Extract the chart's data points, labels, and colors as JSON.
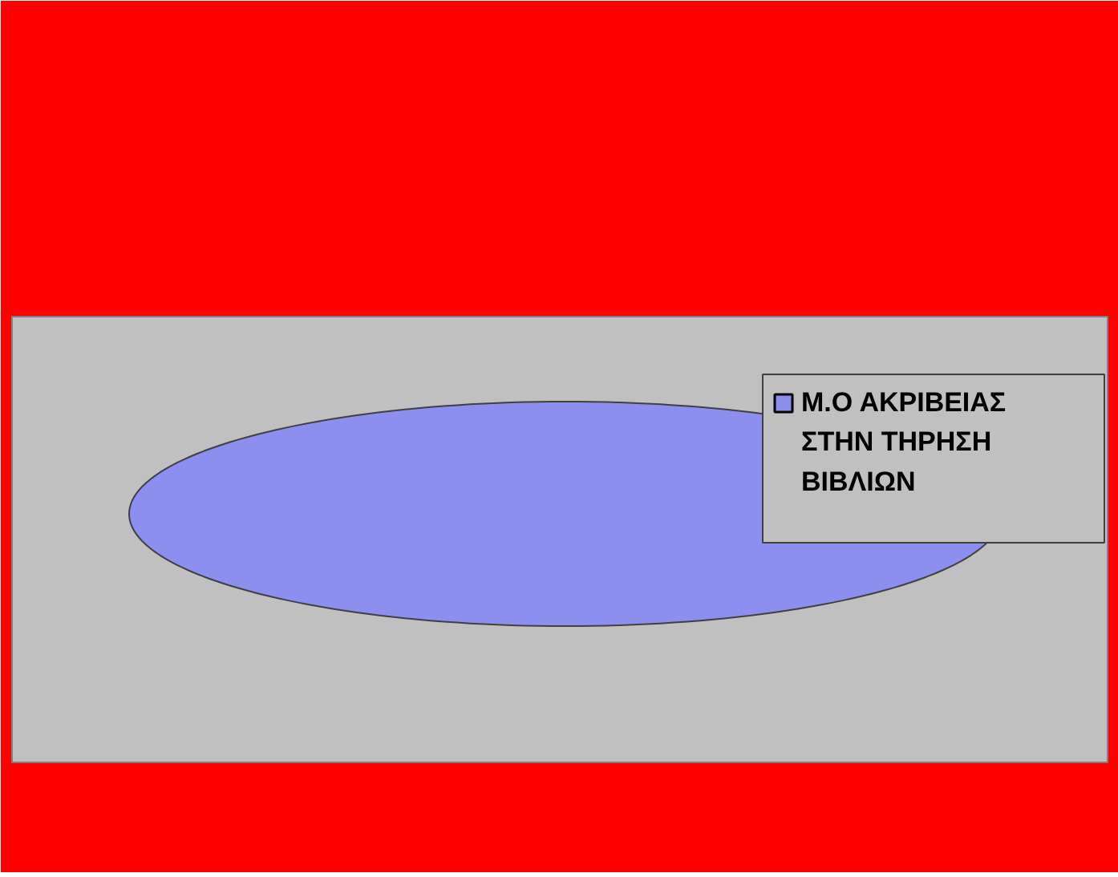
{
  "chart_data": {
    "type": "pie",
    "categories": [
      "Μ.Ο ΑΚΡΙΒΕΙΑΣ ΣΤΗΝ ΤΗΡΗΣΗ ΒΙΒΛΙΩΝ"
    ],
    "values": [
      100
    ],
    "colors": [
      "#8c8fed"
    ],
    "legend": "top right"
  }
}
